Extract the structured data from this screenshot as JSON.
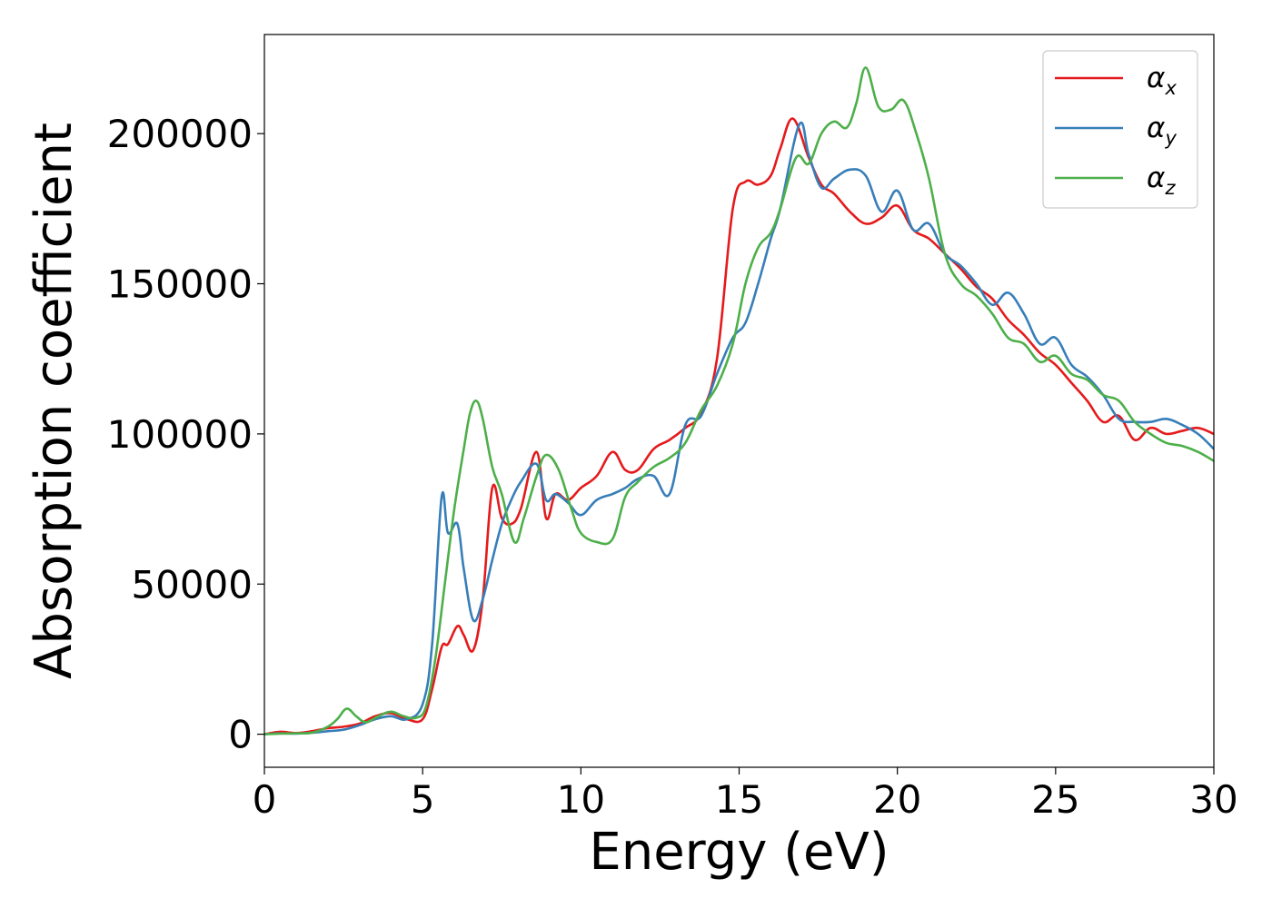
{
  "chart_data": {
    "type": "line",
    "title": "",
    "xlabel": "Energy (eV)",
    "ylabel": "Absorption coefficient",
    "xlim": [
      0,
      30
    ],
    "ylim": [
      -11000,
      233000
    ],
    "x_ticks": [
      0,
      5,
      10,
      15,
      20,
      25,
      30
    ],
    "x_tick_labels": [
      "0",
      "5",
      "10",
      "15",
      "20",
      "25",
      "30"
    ],
    "y_ticks": [
      0,
      50000,
      100000,
      150000,
      200000
    ],
    "y_tick_labels": [
      "0",
      "50000",
      "100000",
      "150000",
      "200000"
    ],
    "grid": false,
    "legend_position": "top-right",
    "series": [
      {
        "name": "α_x",
        "symbol": "α",
        "subscript": "x",
        "color": "#e41a1c",
        "x": [
          0,
          0.5,
          1,
          1.5,
          2,
          2.5,
          3,
          3.5,
          4,
          4.5,
          5,
          5.3,
          5.6,
          5.8,
          6.1,
          6.3,
          6.6,
          6.9,
          7.2,
          7.5,
          7.8,
          8.1,
          8.6,
          8.9,
          9.2,
          9.6,
          10,
          10.5,
          11,
          11.4,
          11.8,
          12.3,
          12.8,
          13.3,
          13.8,
          14.3,
          14.8,
          15.2,
          15.6,
          16,
          16.3,
          16.7,
          17.2,
          17.6,
          18,
          18.5,
          19,
          19.5,
          20,
          20.5,
          21,
          21.5,
          22,
          22.5,
          23,
          23.5,
          24,
          24.5,
          25,
          25.5,
          26,
          26.5,
          27,
          27.5,
          28,
          28.5,
          29,
          29.5,
          30
        ],
        "y": [
          0,
          800,
          400,
          1000,
          2000,
          2500,
          3500,
          6000,
          7000,
          5000,
          5000,
          15000,
          29000,
          30000,
          36000,
          33000,
          28000,
          45000,
          82000,
          72000,
          70000,
          75000,
          94000,
          72000,
          80000,
          78000,
          82000,
          86000,
          94000,
          88000,
          88000,
          95000,
          98000,
          102000,
          107000,
          125000,
          175000,
          184000,
          183000,
          186000,
          195000,
          205000,
          192000,
          183000,
          180000,
          174000,
          170000,
          172000,
          176000,
          168000,
          165000,
          160000,
          155000,
          149000,
          145000,
          138000,
          133000,
          127000,
          123000,
          117000,
          111000,
          104000,
          106000,
          98000,
          102000,
          100000,
          101000,
          102000,
          100000
        ]
      },
      {
        "name": "α_y",
        "symbol": "α",
        "subscript": "y",
        "color": "#377eb8",
        "x": [
          0,
          0.5,
          1,
          1.5,
          2,
          2.5,
          3,
          3.5,
          4,
          4.5,
          5,
          5.3,
          5.6,
          5.8,
          6.1,
          6.3,
          6.6,
          6.9,
          7.2,
          7.5,
          7.8,
          8.1,
          8.6,
          8.9,
          9.2,
          9.6,
          10,
          10.5,
          11,
          11.4,
          11.8,
          12.3,
          12.8,
          13.3,
          13.8,
          14.3,
          14.8,
          15.2,
          15.6,
          16,
          16.3,
          16.9,
          17.2,
          17.6,
          18,
          18.5,
          19,
          19.5,
          20,
          20.5,
          21,
          21.5,
          22,
          22.5,
          23,
          23.5,
          24,
          24.5,
          25,
          25.5,
          26,
          26.5,
          27,
          27.5,
          28,
          28.5,
          29,
          29.5,
          30
        ],
        "y": [
          0,
          300,
          200,
          500,
          1000,
          1500,
          3000,
          5000,
          6000,
          5000,
          10000,
          30000,
          79000,
          67000,
          70000,
          55000,
          38000,
          45000,
          58000,
          70000,
          78000,
          84000,
          90000,
          78000,
          80000,
          77000,
          73000,
          78000,
          80000,
          82000,
          85000,
          86000,
          80000,
          103000,
          106000,
          120000,
          132000,
          137000,
          150000,
          165000,
          175000,
          203000,
          193000,
          182000,
          185000,
          188000,
          186000,
          174000,
          181000,
          168000,
          170000,
          160000,
          156000,
          150000,
          143000,
          147000,
          140000,
          130000,
          132000,
          123000,
          119000,
          113000,
          105000,
          104000,
          104000,
          105000,
          103000,
          100000,
          95000
        ]
      },
      {
        "name": "α_z",
        "symbol": "α",
        "subscript": "z",
        "color": "#4daf4a",
        "x": [
          0,
          0.5,
          1,
          1.5,
          2,
          2.3,
          2.6,
          2.9,
          3.2,
          3.6,
          4,
          4.4,
          4.8,
          5.1,
          5.4,
          5.7,
          6,
          6.3,
          6.5,
          6.7,
          6.9,
          7.2,
          7.5,
          7.9,
          8.2,
          8.6,
          8.9,
          9.3,
          9.7,
          10,
          10.5,
          11,
          11.4,
          11.8,
          12.3,
          12.8,
          13.3,
          13.8,
          14.3,
          14.8,
          15.2,
          15.6,
          16,
          16.3,
          16.8,
          17.2,
          17.6,
          18,
          18.4,
          18.7,
          19,
          19.4,
          19.8,
          20.2,
          20.6,
          21,
          21.5,
          22,
          22.5,
          23,
          23.5,
          24,
          24.5,
          25,
          25.5,
          26,
          26.5,
          27,
          27.5,
          28,
          28.5,
          29,
          29.5,
          30
        ],
        "y": [
          0,
          200,
          300,
          500,
          2500,
          5000,
          8500,
          6000,
          4000,
          6000,
          7500,
          6000,
          5500,
          9000,
          25000,
          50000,
          75000,
          95000,
          107000,
          111000,
          105000,
          89000,
          80000,
          64000,
          72000,
          86000,
          93000,
          88000,
          75000,
          67000,
          64000,
          65000,
          79000,
          84000,
          89000,
          92000,
          97000,
          108000,
          116000,
          130000,
          150000,
          162000,
          167000,
          175000,
          192000,
          190000,
          200000,
          204000,
          202000,
          210000,
          222000,
          209000,
          208000,
          211000,
          200000,
          185000,
          160000,
          150000,
          146000,
          140000,
          132000,
          130000,
          124000,
          126000,
          120000,
          118000,
          113000,
          111000,
          104000,
          100000,
          97000,
          96000,
          94000,
          91000
        ]
      }
    ]
  }
}
